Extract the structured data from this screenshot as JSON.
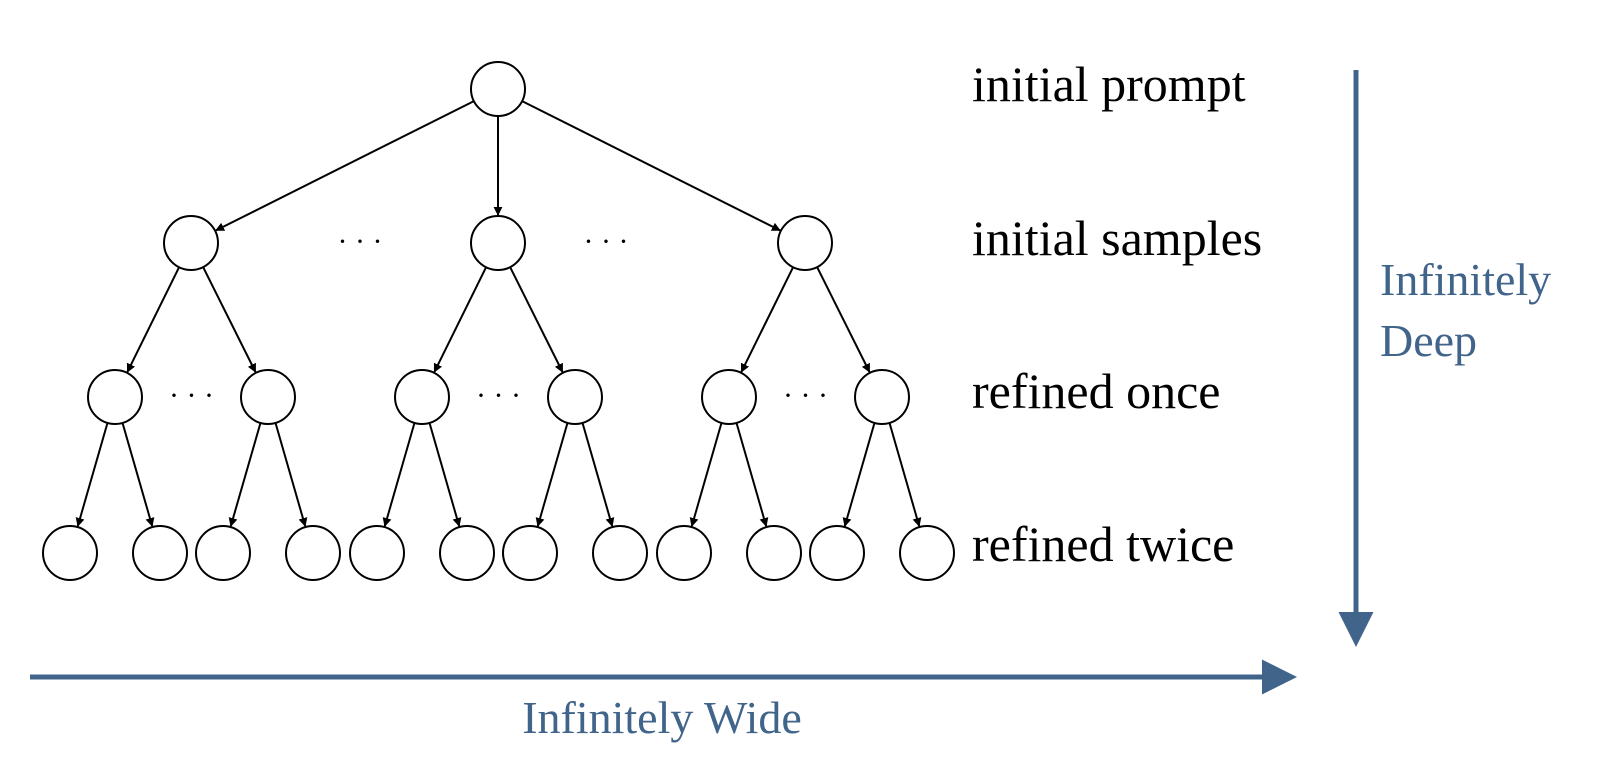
{
  "levels": [
    {
      "label": "initial prompt"
    },
    {
      "label": "initial samples"
    },
    {
      "label": "refined once"
    },
    {
      "label": "refined twice"
    }
  ],
  "ellipsis": "· · ·",
  "axes": {
    "depth": {
      "label_line1": "Infinitely",
      "label_line2": "Deep"
    },
    "width": {
      "label": "Infinitely Wide"
    }
  },
  "colors": {
    "axis": "#40648a",
    "node_stroke": "#000000",
    "node_fill": "#ffffff"
  },
  "tree": {
    "root_children": 3,
    "children_per_sample": 2,
    "children_per_refined": 2
  }
}
